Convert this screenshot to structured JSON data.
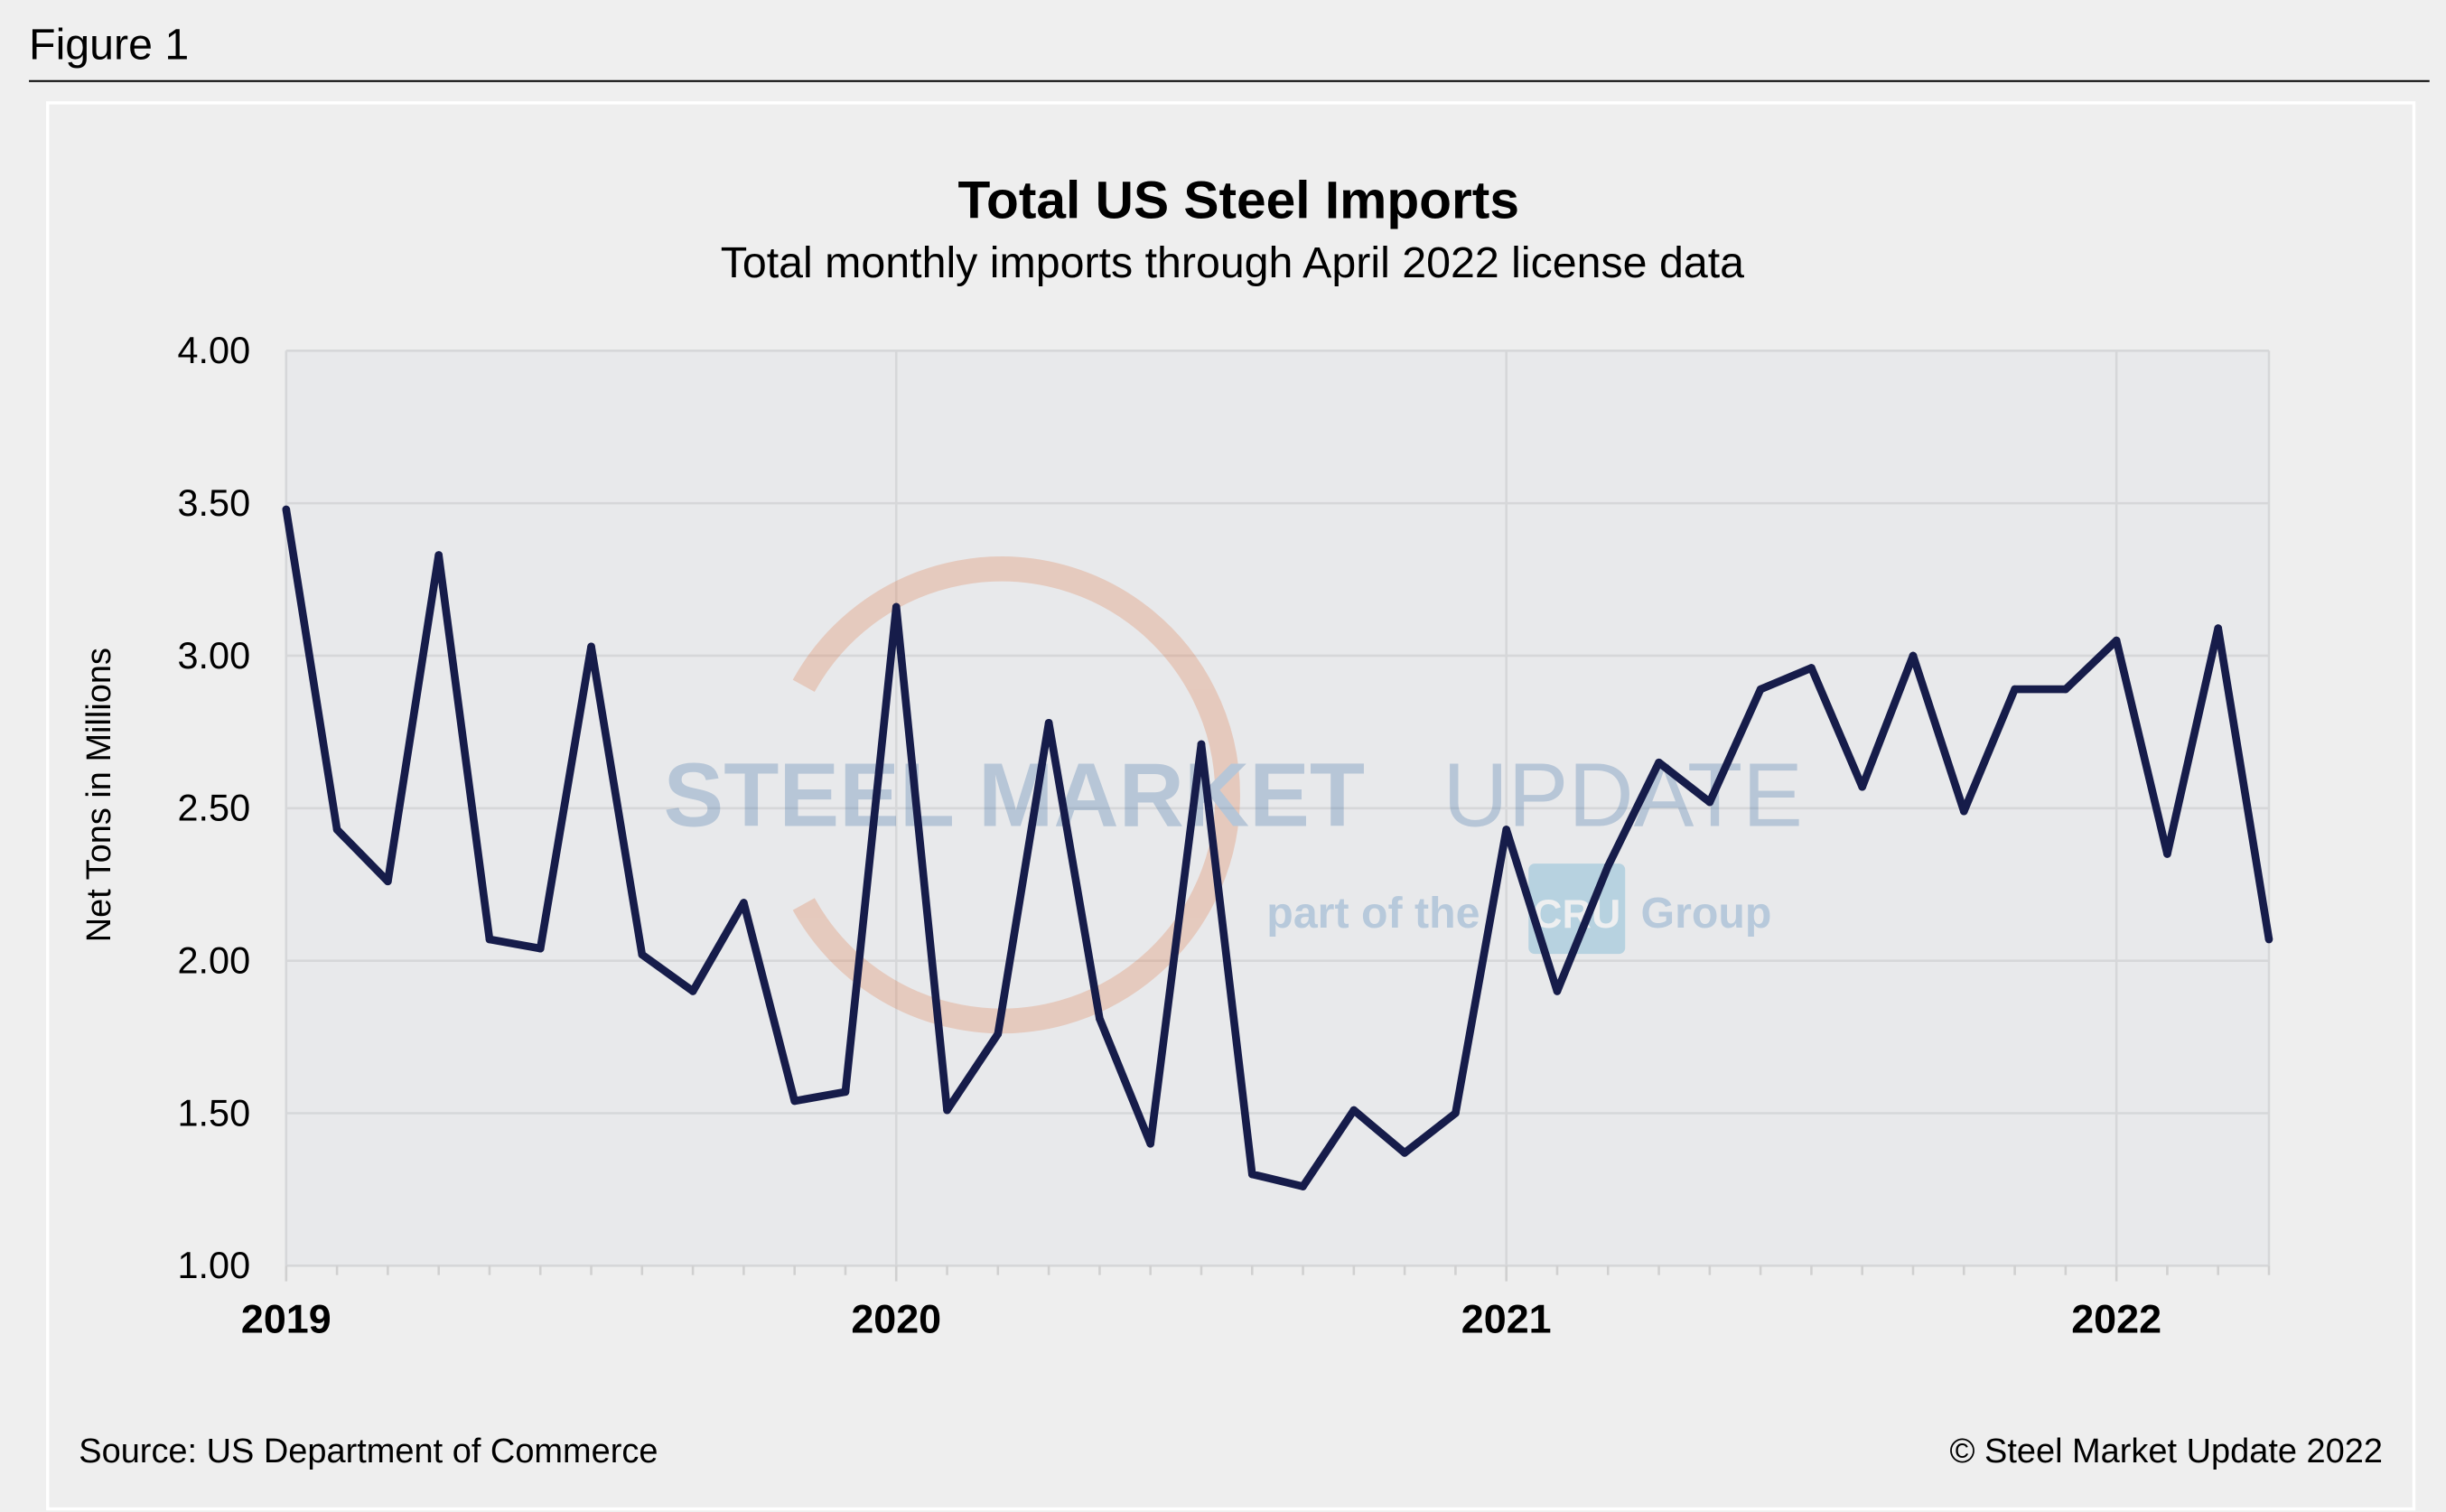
{
  "figure_label": "Figure 1",
  "source": "Source: US Department of Commerce",
  "copyright": "© Steel Market Update 2022",
  "watermark": {
    "line1_bold": "STEEL MARKET",
    "line1_light": "UPDATE",
    "line2a": "part of the",
    "line2_logo": "CRU",
    "line2b": "Group"
  },
  "colors": {
    "line": "#161c4a",
    "plot_bg": "#e8e9eb",
    "grid": "#d6d7d9"
  },
  "chart_data": {
    "type": "line",
    "title": "Total US Steel Imports",
    "subtitle": "Total monthly imports through April 2022 license data",
    "xlabel": "",
    "ylabel": "Net Tons in Millions",
    "ylim": [
      1.0,
      4.0
    ],
    "yticks": [
      "1.00",
      "1.50",
      "2.00",
      "2.50",
      "3.00",
      "3.50",
      "4.00"
    ],
    "xticks": [
      "2019",
      "2020",
      "2021",
      "2022"
    ],
    "grid": true,
    "x_start": "2019-01",
    "x_end": "2022-04",
    "series": [
      {
        "values": [
          3.48,
          2.43,
          2.26,
          3.33,
          2.07,
          2.04,
          3.03,
          2.02,
          1.9,
          2.19,
          1.54,
          1.57,
          3.16,
          1.51,
          1.76,
          2.78,
          1.81,
          1.4,
          2.71,
          1.3,
          1.26,
          1.51,
          1.37,
          1.5,
          2.43,
          1.9,
          2.31,
          2.65,
          2.52,
          2.89,
          2.96,
          2.57,
          3.0,
          2.49,
          2.89,
          2.89,
          3.05,
          2.35,
          3.09,
          2.07
        ]
      }
    ]
  }
}
